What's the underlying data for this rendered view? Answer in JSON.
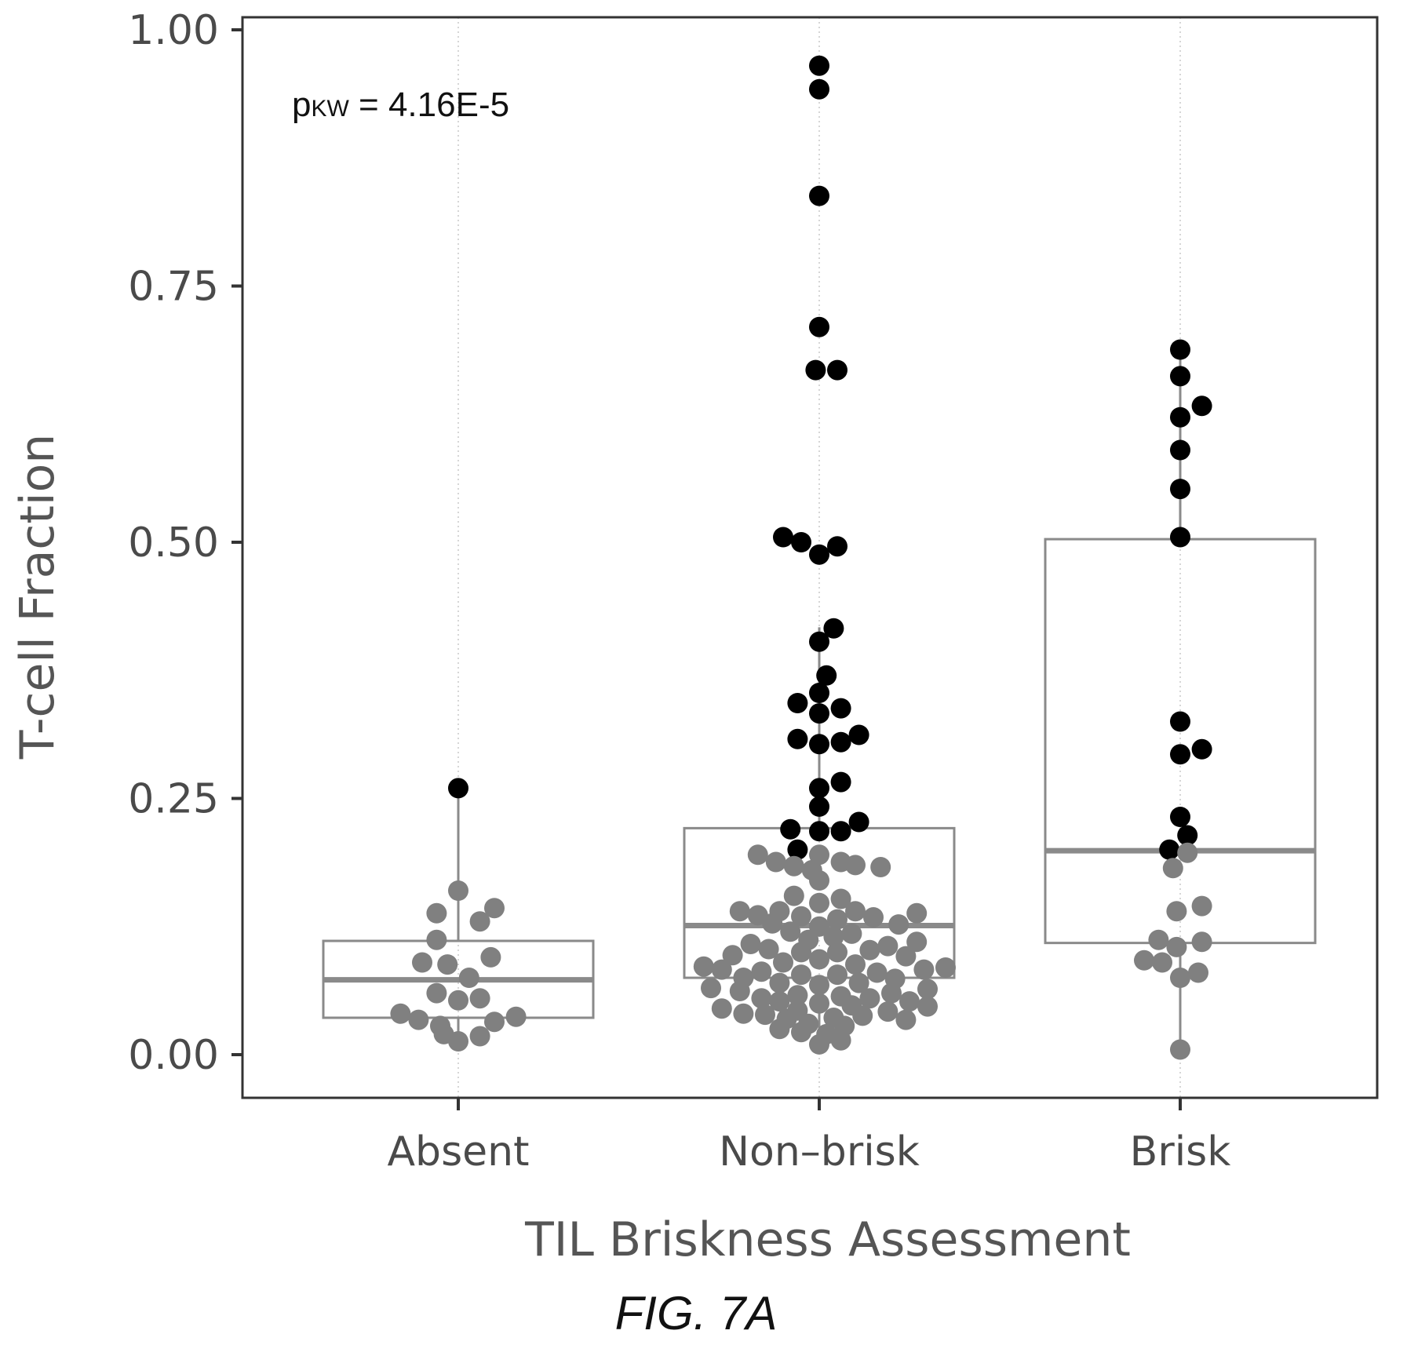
{
  "chart_data": {
    "type": "box+beeswarm",
    "categories": [
      "Absent",
      "Non–brisk",
      "Brisk"
    ],
    "xlabel": "TIL Briskness Assessment",
    "ylabel": "T-cell Fraction",
    "ylim": [
      -0.04,
      1.02
    ],
    "yticks": [
      0.0,
      0.25,
      0.5,
      0.75,
      1.0
    ],
    "ytick_labels": [
      "0.00",
      "0.25",
      "0.50",
      "0.75",
      "1.00"
    ],
    "annotation": {
      "main": "p",
      "sub": "KW",
      "rest": " = 4.16E-5"
    },
    "grid": "vertical dotted at categories",
    "colors": {
      "low": "#808080",
      "high": "#000000",
      "box": "#8a8a8a",
      "axis": "#333333"
    },
    "boxes": [
      {
        "category": "Absent",
        "q1": 0.036,
        "median": 0.073,
        "q3": 0.111,
        "whisker_low": 0.012,
        "whisker_high": 0.26
      },
      {
        "category": "Non–brisk",
        "q1": 0.075,
        "median": 0.126,
        "q3": 0.221,
        "whisker_low": 0.008,
        "whisker_high": 0.417
      },
      {
        "category": "Brisk",
        "q1": 0.109,
        "median": 0.199,
        "q3": 0.503,
        "whisker_low": 0.005,
        "whisker_high": 0.688
      }
    ],
    "points": [
      {
        "category": "Absent",
        "y": 0.26,
        "dx": 0.0,
        "group": "high"
      },
      {
        "category": "Absent",
        "y": 0.16,
        "dx": 0.0,
        "group": "low"
      },
      {
        "category": "Absent",
        "y": 0.143,
        "dx": 0.1,
        "group": "low"
      },
      {
        "category": "Absent",
        "y": 0.138,
        "dx": -0.06,
        "group": "low"
      },
      {
        "category": "Absent",
        "y": 0.13,
        "dx": 0.06,
        "group": "low"
      },
      {
        "category": "Absent",
        "y": 0.112,
        "dx": -0.06,
        "group": "low"
      },
      {
        "category": "Absent",
        "y": 0.095,
        "dx": 0.09,
        "group": "low"
      },
      {
        "category": "Absent",
        "y": 0.09,
        "dx": -0.1,
        "group": "low"
      },
      {
        "category": "Absent",
        "y": 0.088,
        "dx": -0.03,
        "group": "low"
      },
      {
        "category": "Absent",
        "y": 0.075,
        "dx": 0.03,
        "group": "low"
      },
      {
        "category": "Absent",
        "y": 0.06,
        "dx": -0.06,
        "group": "low"
      },
      {
        "category": "Absent",
        "y": 0.055,
        "dx": 0.06,
        "group": "low"
      },
      {
        "category": "Absent",
        "y": 0.053,
        "dx": 0.0,
        "group": "low"
      },
      {
        "category": "Absent",
        "y": 0.04,
        "dx": -0.16,
        "group": "low"
      },
      {
        "category": "Absent",
        "y": 0.037,
        "dx": 0.16,
        "group": "low"
      },
      {
        "category": "Absent",
        "y": 0.034,
        "dx": -0.11,
        "group": "low"
      },
      {
        "category": "Absent",
        "y": 0.032,
        "dx": 0.1,
        "group": "low"
      },
      {
        "category": "Absent",
        "y": 0.028,
        "dx": -0.05,
        "group": "low"
      },
      {
        "category": "Absent",
        "y": 0.02,
        "dx": -0.04,
        "group": "low"
      },
      {
        "category": "Absent",
        "y": 0.018,
        "dx": 0.06,
        "group": "low"
      },
      {
        "category": "Absent",
        "y": 0.013,
        "dx": 0.0,
        "group": "low"
      },
      {
        "category": "Non–brisk",
        "y": 0.965,
        "dx": 0.0,
        "group": "high"
      },
      {
        "category": "Non–brisk",
        "y": 0.942,
        "dx": 0.0,
        "group": "high"
      },
      {
        "category": "Non–brisk",
        "y": 0.838,
        "dx": 0.0,
        "group": "high"
      },
      {
        "category": "Non–brisk",
        "y": 0.71,
        "dx": 0.0,
        "group": "high"
      },
      {
        "category": "Non–brisk",
        "y": 0.668,
        "dx": -0.01,
        "group": "high"
      },
      {
        "category": "Non–brisk",
        "y": 0.668,
        "dx": 0.05,
        "group": "high"
      },
      {
        "category": "Non–brisk",
        "y": 0.505,
        "dx": -0.1,
        "group": "high"
      },
      {
        "category": "Non–brisk",
        "y": 0.5,
        "dx": -0.05,
        "group": "high"
      },
      {
        "category": "Non–brisk",
        "y": 0.496,
        "dx": 0.05,
        "group": "high"
      },
      {
        "category": "Non–brisk",
        "y": 0.488,
        "dx": 0.0,
        "group": "high"
      },
      {
        "category": "Non–brisk",
        "y": 0.416,
        "dx": 0.04,
        "group": "high"
      },
      {
        "category": "Non–brisk",
        "y": 0.403,
        "dx": 0.0,
        "group": "high"
      },
      {
        "category": "Non–brisk",
        "y": 0.37,
        "dx": 0.02,
        "group": "high"
      },
      {
        "category": "Non–brisk",
        "y": 0.353,
        "dx": 0.0,
        "group": "high"
      },
      {
        "category": "Non–brisk",
        "y": 0.343,
        "dx": -0.06,
        "group": "high"
      },
      {
        "category": "Non–brisk",
        "y": 0.338,
        "dx": 0.06,
        "group": "high"
      },
      {
        "category": "Non–brisk",
        "y": 0.333,
        "dx": 0.0,
        "group": "high"
      },
      {
        "category": "Non–brisk",
        "y": 0.312,
        "dx": 0.11,
        "group": "high"
      },
      {
        "category": "Non–brisk",
        "y": 0.308,
        "dx": -0.06,
        "group": "high"
      },
      {
        "category": "Non–brisk",
        "y": 0.305,
        "dx": 0.06,
        "group": "high"
      },
      {
        "category": "Non–brisk",
        "y": 0.303,
        "dx": 0.0,
        "group": "high"
      },
      {
        "category": "Non–brisk",
        "y": 0.266,
        "dx": 0.06,
        "group": "high"
      },
      {
        "category": "Non–brisk",
        "y": 0.26,
        "dx": 0.0,
        "group": "high"
      },
      {
        "category": "Non–brisk",
        "y": 0.242,
        "dx": 0.0,
        "group": "high"
      },
      {
        "category": "Non–brisk",
        "y": 0.227,
        "dx": 0.11,
        "group": "high"
      },
      {
        "category": "Non–brisk",
        "y": 0.22,
        "dx": -0.08,
        "group": "high"
      },
      {
        "category": "Non–brisk",
        "y": 0.218,
        "dx": 0.0,
        "group": "high"
      },
      {
        "category": "Non–brisk",
        "y": 0.218,
        "dx": 0.06,
        "group": "high"
      },
      {
        "category": "Non–brisk",
        "y": 0.2,
        "dx": -0.06,
        "group": "high"
      },
      {
        "category": "Non–brisk",
        "y": 0.195,
        "dx": -0.17,
        "group": "low"
      },
      {
        "category": "Non–brisk",
        "y": 0.195,
        "dx": 0.0,
        "group": "low"
      },
      {
        "category": "Non–brisk",
        "y": 0.188,
        "dx": -0.12,
        "group": "low"
      },
      {
        "category": "Non–brisk",
        "y": 0.188,
        "dx": 0.06,
        "group": "low"
      },
      {
        "category": "Non–brisk",
        "y": 0.185,
        "dx": 0.1,
        "group": "low"
      },
      {
        "category": "Non–brisk",
        "y": 0.184,
        "dx": -0.07,
        "group": "low"
      },
      {
        "category": "Non–brisk",
        "y": 0.183,
        "dx": 0.17,
        "group": "low"
      },
      {
        "category": "Non–brisk",
        "y": 0.18,
        "dx": -0.02,
        "group": "low"
      },
      {
        "category": "Non–brisk",
        "y": 0.17,
        "dx": 0.0,
        "group": "low"
      },
      {
        "category": "Non–brisk",
        "y": 0.155,
        "dx": -0.07,
        "group": "low"
      },
      {
        "category": "Non–brisk",
        "y": 0.152,
        "dx": 0.06,
        "group": "low"
      },
      {
        "category": "Non–brisk",
        "y": 0.148,
        "dx": 0.0,
        "group": "low"
      },
      {
        "category": "Non–brisk",
        "y": 0.14,
        "dx": -0.11,
        "group": "low"
      },
      {
        "category": "Non–brisk",
        "y": 0.14,
        "dx": 0.1,
        "group": "low"
      },
      {
        "category": "Non–brisk",
        "y": 0.14,
        "dx": -0.22,
        "group": "low"
      },
      {
        "category": "Non–brisk",
        "y": 0.138,
        "dx": 0.27,
        "group": "low"
      },
      {
        "category": "Non–brisk",
        "y": 0.136,
        "dx": -0.17,
        "group": "low"
      },
      {
        "category": "Non–brisk",
        "y": 0.135,
        "dx": -0.05,
        "group": "low"
      },
      {
        "category": "Non–brisk",
        "y": 0.134,
        "dx": 0.15,
        "group": "low"
      },
      {
        "category": "Non–brisk",
        "y": 0.132,
        "dx": 0.05,
        "group": "low"
      },
      {
        "category": "Non–brisk",
        "y": 0.128,
        "dx": -0.13,
        "group": "low"
      },
      {
        "category": "Non–brisk",
        "y": 0.127,
        "dx": 0.22,
        "group": "low"
      },
      {
        "category": "Non–brisk",
        "y": 0.125,
        "dx": 0.0,
        "group": "low"
      },
      {
        "category": "Non–brisk",
        "y": 0.12,
        "dx": -0.08,
        "group": "low"
      },
      {
        "category": "Non–brisk",
        "y": 0.118,
        "dx": 0.09,
        "group": "low"
      },
      {
        "category": "Non–brisk",
        "y": 0.115,
        "dx": 0.04,
        "group": "low"
      },
      {
        "category": "Non–brisk",
        "y": 0.112,
        "dx": -0.03,
        "group": "low"
      },
      {
        "category": "Non–brisk",
        "y": 0.11,
        "dx": 0.27,
        "group": "low"
      },
      {
        "category": "Non–brisk",
        "y": 0.108,
        "dx": -0.19,
        "group": "low"
      },
      {
        "category": "Non–brisk",
        "y": 0.106,
        "dx": 0.19,
        "group": "low"
      },
      {
        "category": "Non–brisk",
        "y": 0.103,
        "dx": -0.14,
        "group": "low"
      },
      {
        "category": "Non–brisk",
        "y": 0.102,
        "dx": 0.14,
        "group": "low"
      },
      {
        "category": "Non–brisk",
        "y": 0.1,
        "dx": -0.05,
        "group": "low"
      },
      {
        "category": "Non–brisk",
        "y": 0.1,
        "dx": 0.05,
        "group": "low"
      },
      {
        "category": "Non–brisk",
        "y": 0.097,
        "dx": -0.24,
        "group": "low"
      },
      {
        "category": "Non–brisk",
        "y": 0.096,
        "dx": 0.24,
        "group": "low"
      },
      {
        "category": "Non–brisk",
        "y": 0.093,
        "dx": 0.0,
        "group": "low"
      },
      {
        "category": "Non–brisk",
        "y": 0.09,
        "dx": -0.1,
        "group": "low"
      },
      {
        "category": "Non–brisk",
        "y": 0.088,
        "dx": 0.1,
        "group": "low"
      },
      {
        "category": "Non–brisk",
        "y": 0.086,
        "dx": -0.32,
        "group": "low"
      },
      {
        "category": "Non–brisk",
        "y": 0.085,
        "dx": 0.35,
        "group": "low"
      },
      {
        "category": "Non–brisk",
        "y": 0.083,
        "dx": -0.27,
        "group": "low"
      },
      {
        "category": "Non–brisk",
        "y": 0.083,
        "dx": 0.29,
        "group": "low"
      },
      {
        "category": "Non–brisk",
        "y": 0.081,
        "dx": -0.16,
        "group": "low"
      },
      {
        "category": "Non–brisk",
        "y": 0.08,
        "dx": 0.16,
        "group": "low"
      },
      {
        "category": "Non–brisk",
        "y": 0.078,
        "dx": -0.05,
        "group": "low"
      },
      {
        "category": "Non–brisk",
        "y": 0.078,
        "dx": 0.05,
        "group": "low"
      },
      {
        "category": "Non–brisk",
        "y": 0.075,
        "dx": -0.21,
        "group": "low"
      },
      {
        "category": "Non–brisk",
        "y": 0.074,
        "dx": 0.21,
        "group": "low"
      },
      {
        "category": "Non–brisk",
        "y": 0.07,
        "dx": -0.11,
        "group": "low"
      },
      {
        "category": "Non–brisk",
        "y": 0.07,
        "dx": 0.11,
        "group": "low"
      },
      {
        "category": "Non–brisk",
        "y": 0.068,
        "dx": 0.0,
        "group": "low"
      },
      {
        "category": "Non–brisk",
        "y": 0.065,
        "dx": -0.3,
        "group": "low"
      },
      {
        "category": "Non–brisk",
        "y": 0.064,
        "dx": 0.3,
        "group": "low"
      },
      {
        "category": "Non–brisk",
        "y": 0.062,
        "dx": -0.22,
        "group": "low"
      },
      {
        "category": "Non–brisk",
        "y": 0.06,
        "dx": 0.2,
        "group": "low"
      },
      {
        "category": "Non–brisk",
        "y": 0.058,
        "dx": -0.06,
        "group": "low"
      },
      {
        "category": "Non–brisk",
        "y": 0.057,
        "dx": 0.06,
        "group": "low"
      },
      {
        "category": "Non–brisk",
        "y": 0.055,
        "dx": -0.16,
        "group": "low"
      },
      {
        "category": "Non–brisk",
        "y": 0.055,
        "dx": 0.14,
        "group": "low"
      },
      {
        "category": "Non–brisk",
        "y": 0.052,
        "dx": -0.11,
        "group": "low"
      },
      {
        "category": "Non–brisk",
        "y": 0.052,
        "dx": 0.25,
        "group": "low"
      },
      {
        "category": "Non–brisk",
        "y": 0.05,
        "dx": 0.0,
        "group": "low"
      },
      {
        "category": "Non–brisk",
        "y": 0.048,
        "dx": 0.09,
        "group": "low"
      },
      {
        "category": "Non–brisk",
        "y": 0.047,
        "dx": 0.3,
        "group": "low"
      },
      {
        "category": "Non–brisk",
        "y": 0.045,
        "dx": -0.27,
        "group": "low"
      },
      {
        "category": "Non–brisk",
        "y": 0.043,
        "dx": -0.06,
        "group": "low"
      },
      {
        "category": "Non–brisk",
        "y": 0.042,
        "dx": 0.19,
        "group": "low"
      },
      {
        "category": "Non–brisk",
        "y": 0.04,
        "dx": -0.21,
        "group": "low"
      },
      {
        "category": "Non–brisk",
        "y": 0.039,
        "dx": -0.15,
        "group": "low"
      },
      {
        "category": "Non–brisk",
        "y": 0.038,
        "dx": 0.12,
        "group": "low"
      },
      {
        "category": "Non–brisk",
        "y": 0.036,
        "dx": 0.04,
        "group": "low"
      },
      {
        "category": "Non–brisk",
        "y": 0.035,
        "dx": -0.09,
        "group": "low"
      },
      {
        "category": "Non–brisk",
        "y": 0.034,
        "dx": 0.24,
        "group": "low"
      },
      {
        "category": "Non–brisk",
        "y": 0.03,
        "dx": -0.03,
        "group": "low"
      },
      {
        "category": "Non–brisk",
        "y": 0.028,
        "dx": 0.07,
        "group": "low"
      },
      {
        "category": "Non–brisk",
        "y": 0.025,
        "dx": -0.11,
        "group": "low"
      },
      {
        "category": "Non–brisk",
        "y": 0.022,
        "dx": -0.05,
        "group": "low"
      },
      {
        "category": "Non–brisk",
        "y": 0.02,
        "dx": 0.02,
        "group": "low"
      },
      {
        "category": "Non–brisk",
        "y": 0.014,
        "dx": 0.06,
        "group": "low"
      },
      {
        "category": "Non–brisk",
        "y": 0.01,
        "dx": 0.0,
        "group": "low"
      },
      {
        "category": "Brisk",
        "y": 0.688,
        "dx": 0.0,
        "group": "high"
      },
      {
        "category": "Brisk",
        "y": 0.662,
        "dx": 0.0,
        "group": "high"
      },
      {
        "category": "Brisk",
        "y": 0.633,
        "dx": 0.06,
        "group": "high"
      },
      {
        "category": "Brisk",
        "y": 0.622,
        "dx": 0.0,
        "group": "high"
      },
      {
        "category": "Brisk",
        "y": 0.59,
        "dx": 0.0,
        "group": "high"
      },
      {
        "category": "Brisk",
        "y": 0.552,
        "dx": 0.0,
        "group": "high"
      },
      {
        "category": "Brisk",
        "y": 0.505,
        "dx": 0.0,
        "group": "high"
      },
      {
        "category": "Brisk",
        "y": 0.325,
        "dx": 0.0,
        "group": "high"
      },
      {
        "category": "Brisk",
        "y": 0.298,
        "dx": 0.06,
        "group": "high"
      },
      {
        "category": "Brisk",
        "y": 0.293,
        "dx": 0.0,
        "group": "high"
      },
      {
        "category": "Brisk",
        "y": 0.232,
        "dx": 0.0,
        "group": "high"
      },
      {
        "category": "Brisk",
        "y": 0.214,
        "dx": 0.02,
        "group": "high"
      },
      {
        "category": "Brisk",
        "y": 0.2,
        "dx": -0.03,
        "group": "high"
      },
      {
        "category": "Brisk",
        "y": 0.197,
        "dx": 0.02,
        "group": "low"
      },
      {
        "category": "Brisk",
        "y": 0.182,
        "dx": -0.02,
        "group": "low"
      },
      {
        "category": "Brisk",
        "y": 0.145,
        "dx": 0.06,
        "group": "low"
      },
      {
        "category": "Brisk",
        "y": 0.14,
        "dx": -0.01,
        "group": "low"
      },
      {
        "category": "Brisk",
        "y": 0.112,
        "dx": -0.06,
        "group": "low"
      },
      {
        "category": "Brisk",
        "y": 0.11,
        "dx": 0.06,
        "group": "low"
      },
      {
        "category": "Brisk",
        "y": 0.105,
        "dx": -0.01,
        "group": "low"
      },
      {
        "category": "Brisk",
        "y": 0.092,
        "dx": -0.1,
        "group": "low"
      },
      {
        "category": "Brisk",
        "y": 0.09,
        "dx": -0.05,
        "group": "low"
      },
      {
        "category": "Brisk",
        "y": 0.08,
        "dx": 0.05,
        "group": "low"
      },
      {
        "category": "Brisk",
        "y": 0.075,
        "dx": 0.0,
        "group": "low"
      },
      {
        "category": "Brisk",
        "y": 0.005,
        "dx": 0.0,
        "group": "low"
      }
    ]
  },
  "figure_caption": "FIG. 7A"
}
